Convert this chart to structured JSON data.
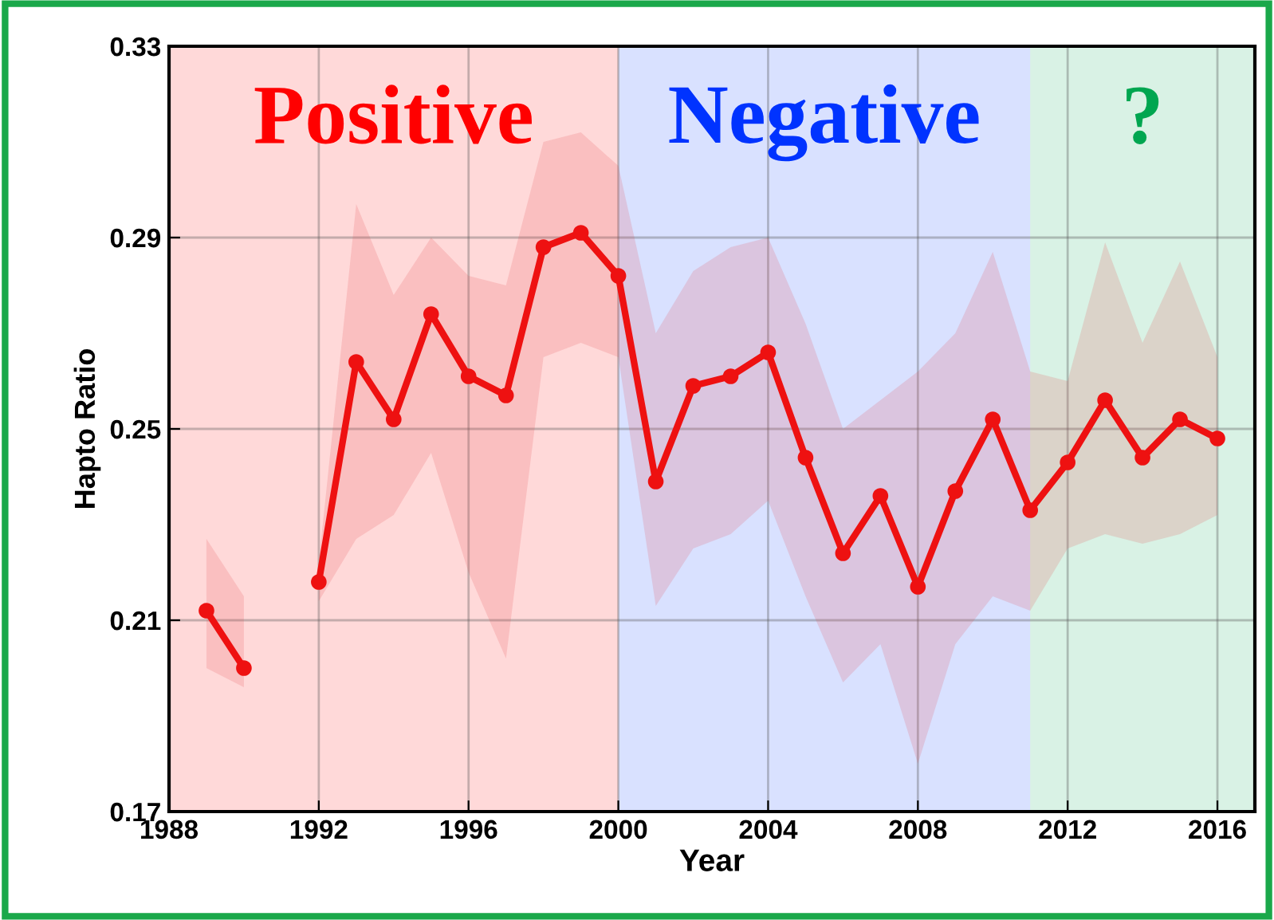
{
  "chart_data": {
    "type": "line",
    "xlabel": "Year",
    "ylabel": "Hapto Ratio",
    "x": [
      1989,
      1990,
      1991,
      1992,
      1993,
      1994,
      1995,
      1996,
      1997,
      1998,
      1999,
      2000,
      2001,
      2002,
      2003,
      2004,
      2005,
      2006,
      2007,
      2008,
      2009,
      2010,
      2011,
      2012,
      2013,
      2014,
      2015,
      2016
    ],
    "series": [
      {
        "color": "#ee1111",
        "values": [
          0.212,
          0.2,
          null,
          0.218,
          0.264,
          0.252,
          0.274,
          0.261,
          0.257,
          0.288,
          0.291,
          0.282,
          0.239,
          0.259,
          0.261,
          0.266,
          0.244,
          0.224,
          0.236,
          0.217,
          0.237,
          0.252,
          0.233,
          0.243,
          0.256,
          0.244,
          0.252,
          0.248
        ],
        "lower": [
          0.2,
          0.196,
          null,
          0.214,
          0.227,
          0.232,
          0.245,
          0.22,
          0.202,
          0.265,
          0.268,
          0.265,
          0.213,
          0.225,
          0.228,
          0.235,
          0.215,
          0.197,
          0.205,
          0.18,
          0.205,
          0.215,
          0.212,
          0.225,
          0.228,
          0.226,
          0.228,
          0.232
        ],
        "upper": [
          0.227,
          0.215,
          null,
          0.222,
          0.297,
          0.278,
          0.29,
          0.282,
          0.28,
          0.31,
          0.312,
          0.305,
          0.27,
          0.283,
          0.288,
          0.29,
          0.272,
          0.25,
          0.256,
          0.262,
          0.27,
          0.287,
          0.262,
          0.26,
          0.289,
          0.268,
          0.285,
          0.265
        ]
      }
    ],
    "xlim": [
      1988,
      2017
    ],
    "xticks": [
      1988,
      1992,
      1996,
      2000,
      2004,
      2008,
      2012,
      2016
    ],
    "ylim": [
      0.17,
      0.33
    ],
    "yticks": [
      0.17,
      0.21,
      0.25,
      0.29,
      0.33
    ],
    "bands": [
      {
        "axis": "x",
        "from": 1988,
        "to": 2000,
        "label": "Positive",
        "color": "#ff0000"
      },
      {
        "axis": "x",
        "from": 2000,
        "to": 2011,
        "label": "Negative",
        "color": "#0033ff"
      },
      {
        "axis": "x",
        "from": 2011,
        "to": 2017,
        "label": "?",
        "color": "#00a650"
      }
    ],
    "grid": true,
    "marker": "circle",
    "line_style": "solid"
  }
}
